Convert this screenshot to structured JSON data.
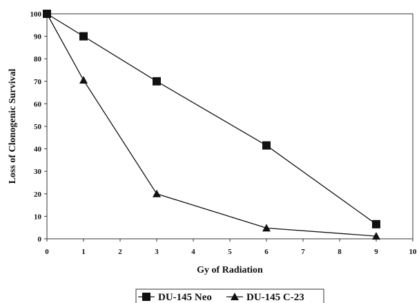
{
  "chart_data": {
    "type": "line",
    "title": "",
    "xlabel": "Gy of Radiation",
    "ylabel": "Loss of Clonogenic Survival",
    "xlim": [
      0,
      10
    ],
    "ylim": [
      0,
      100
    ],
    "x_ticks": [
      0,
      1,
      2,
      3,
      4,
      5,
      6,
      7,
      8,
      9,
      10
    ],
    "y_ticks": [
      0,
      10,
      20,
      30,
      40,
      50,
      60,
      70,
      80,
      90,
      100
    ],
    "grid": false,
    "legend_position": "bottom",
    "series": [
      {
        "name": "DU-145 Neo",
        "marker": "square",
        "color": "#111111",
        "x": [
          0,
          1,
          3,
          6,
          9
        ],
        "y": [
          100,
          90,
          70,
          41.5,
          6.5
        ]
      },
      {
        "name": "DU-145 C-23",
        "marker": "triangle",
        "color": "#111111",
        "x": [
          0,
          1,
          3,
          6,
          9
        ],
        "y": [
          100,
          70.5,
          20,
          4.8,
          1.2
        ]
      }
    ]
  }
}
